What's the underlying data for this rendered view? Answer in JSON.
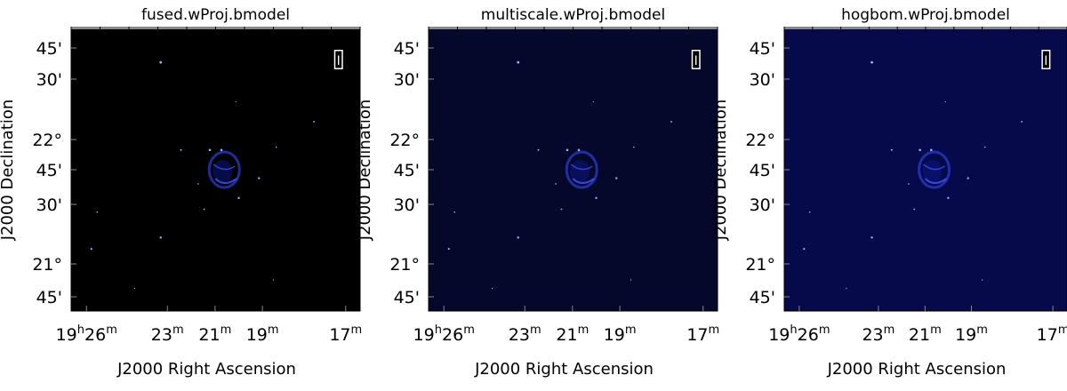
{
  "panels": [
    {
      "title": "fused.wProj.bmodel",
      "background": "#000000",
      "ylabel": "J2000 Declination",
      "xlabel": "J2000 Right Ascension",
      "stokes_label": "I",
      "dec_ticks": [
        "45'",
        "30'",
        "22°",
        "45'",
        "30'",
        "21°",
        "45'"
      ],
      "ra_ticks": [
        {
          "h": "19",
          "hu": "h",
          "m": "26",
          "mu": "m"
        },
        {
          "h": "",
          "hu": "",
          "m": "23",
          "mu": "m"
        },
        {
          "h": "",
          "hu": "",
          "m": "21",
          "mu": "m"
        },
        {
          "h": "",
          "hu": "",
          "m": "19",
          "mu": "m"
        },
        {
          "h": "",
          "hu": "",
          "m": "17",
          "mu": "m"
        }
      ]
    },
    {
      "title": "multiscale.wProj.bmodel",
      "background": "#05082a",
      "ylabel": "J2000 Declination",
      "xlabel": "J2000 Right Ascension",
      "stokes_label": "I",
      "dec_ticks": [
        "45'",
        "30'",
        "22°",
        "45'",
        "30'",
        "21°",
        "45'"
      ],
      "ra_ticks": [
        {
          "h": "19",
          "hu": "h",
          "m": "26",
          "mu": "m"
        },
        {
          "h": "",
          "hu": "",
          "m": "23",
          "mu": "m"
        },
        {
          "h": "",
          "hu": "",
          "m": "21",
          "mu": "m"
        },
        {
          "h": "",
          "hu": "",
          "m": "19",
          "mu": "m"
        },
        {
          "h": "",
          "hu": "",
          "m": "17",
          "mu": "m"
        }
      ]
    },
    {
      "title": "hogbom.wProj.bmodel",
      "background": "#06094a",
      "ylabel": "J2000 Declination",
      "xlabel": "J2000 Right Ascension",
      "stokes_label": "I",
      "dec_ticks": [
        "45'",
        "30'",
        "22°",
        "45'",
        "30'",
        "21°",
        "45'"
      ],
      "ra_ticks": [
        {
          "h": "19",
          "hu": "h",
          "m": "26",
          "mu": "m"
        },
        {
          "h": "",
          "hu": "",
          "m": "23",
          "mu": "m"
        },
        {
          "h": "",
          "hu": "",
          "m": "21",
          "mu": "m"
        },
        {
          "h": "",
          "hu": "",
          "m": "19",
          "mu": "m"
        },
        {
          "h": "",
          "hu": "",
          "m": "17",
          "mu": "m"
        }
      ]
    }
  ]
}
